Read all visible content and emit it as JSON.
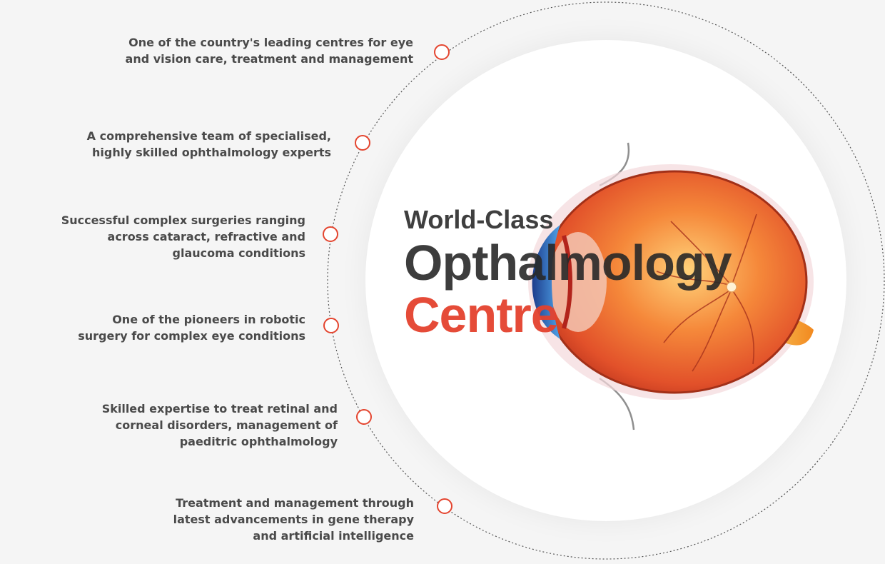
{
  "title": {
    "line1": "World-Class",
    "line2": "Opthalmology",
    "line3": "Centre"
  },
  "features": [
    {
      "lines": [
        "One of the country's leading centres for eye",
        "and vision care, treatment and management"
      ]
    },
    {
      "lines": [
        "A comprehensive team of specialised,",
        "highly skilled ophthalmology experts"
      ]
    },
    {
      "lines": [
        "Successful complex surgeries ranging",
        "across cataract, refractive and",
        "glaucoma conditions"
      ]
    },
    {
      "lines": [
        "One of the pioneers in robotic",
        "surgery for complex eye conditions"
      ]
    },
    {
      "lines": [
        "Skilled expertise to treat retinal and",
        "corneal disorders, management of",
        "paeditric ophthalmology"
      ]
    },
    {
      "lines": [
        "Treatment and management through",
        "latest advancements in gene therapy",
        "and artificial intelligence"
      ]
    }
  ],
  "colors": {
    "accent": "#e4452f",
    "text": "#4a4a4a",
    "background": "#f5f5f5"
  },
  "illustration": {
    "icon": "eye-anatomy-illustration"
  }
}
